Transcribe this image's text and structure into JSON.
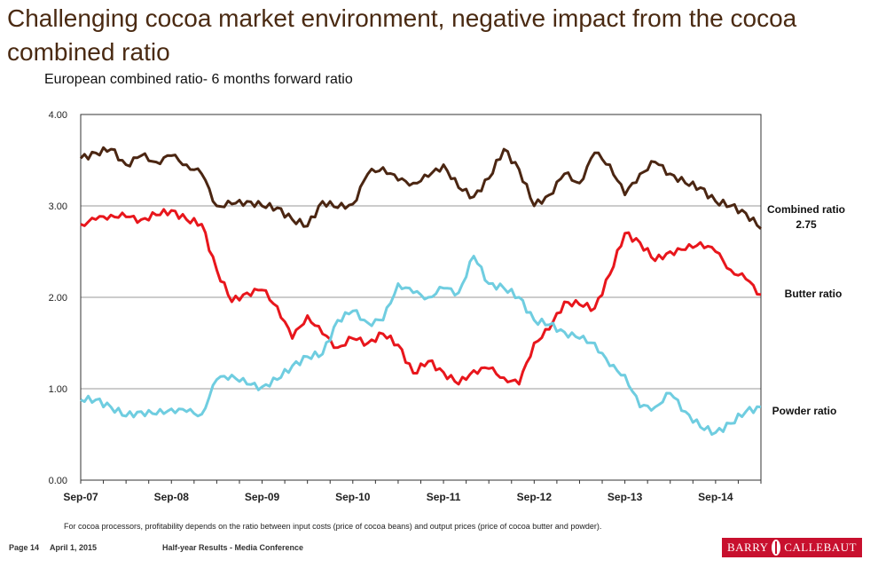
{
  "header": {
    "title": "Challenging cocoa market environment, negative impact from the cocoa combined ratio",
    "subtitle": "European combined ratio- 6 months forward ratio"
  },
  "footnote": "For cocoa processors, profitability depends on the ratio between input costs (price of cocoa beans) and output prices (price of cocoa butter and powder).",
  "footer": {
    "page": "Page 14",
    "date": "April 1, 2015",
    "event": "Half-year Results -  Media Conference",
    "logo_left": "BARRY",
    "logo_right": "CALLEBAUT"
  },
  "chart_data": {
    "type": "line",
    "title": "European combined ratio- 6 months forward ratio",
    "xlabel": "",
    "ylabel": "",
    "ylim": [
      0,
      4
    ],
    "yticks": [
      "0.00",
      "1.00",
      "2.00",
      "3.00",
      "4.00"
    ],
    "xlim": [
      0,
      90
    ],
    "x_tick_positions": [
      0,
      12,
      24,
      36,
      48,
      60,
      72,
      84
    ],
    "x_tick_labels": [
      "Sep-07",
      "Sep-08",
      "Sep-09",
      "Sep-10",
      "Sep-11",
      "Sep-12",
      "Sep-13",
      "Sep-14"
    ],
    "x": [
      0,
      2,
      4,
      6,
      8,
      10,
      12,
      14,
      16,
      18,
      20,
      22,
      24,
      26,
      28,
      30,
      32,
      34,
      36,
      38,
      40,
      42,
      44,
      46,
      48,
      50,
      52,
      54,
      56,
      58,
      60,
      62,
      64,
      66,
      68,
      70,
      72,
      74,
      76,
      78,
      80,
      82,
      84,
      86,
      88,
      90
    ],
    "series": [
      {
        "name": "Combined ratio",
        "label": "Combined ratio",
        "end_label": "2.75",
        "color": "#4b2612",
        "values": [
          3.52,
          3.58,
          3.62,
          3.45,
          3.55,
          3.48,
          3.55,
          3.45,
          3.35,
          3.0,
          3.02,
          3.05,
          3.0,
          2.98,
          2.85,
          2.78,
          3.05,
          2.98,
          3.02,
          3.35,
          3.42,
          3.28,
          3.25,
          3.32,
          3.45,
          3.2,
          3.1,
          3.3,
          3.62,
          3.4,
          3.0,
          3.12,
          3.35,
          3.25,
          3.58,
          3.45,
          3.12,
          3.35,
          3.48,
          3.35,
          3.25,
          3.2,
          3.05,
          3.0,
          2.92,
          2.75
        ]
      },
      {
        "name": "Butter ratio",
        "label": "Butter ratio",
        "color": "#e8161c",
        "values": [
          2.8,
          2.85,
          2.9,
          2.88,
          2.85,
          2.9,
          2.95,
          2.85,
          2.8,
          2.3,
          1.95,
          2.05,
          2.08,
          1.9,
          1.55,
          1.8,
          1.6,
          1.45,
          1.55,
          1.5,
          1.6,
          1.48,
          1.17,
          1.3,
          1.18,
          1.05,
          1.2,
          1.22,
          1.12,
          1.05,
          1.5,
          1.65,
          1.95,
          1.92,
          1.88,
          2.25,
          2.7,
          2.6,
          2.4,
          2.5,
          2.52,
          2.6,
          2.5,
          2.3,
          2.2,
          2.03
        ]
      },
      {
        "name": "Powder ratio",
        "label": "Powder ratio",
        "color": "#6fcde0",
        "values": [
          0.88,
          0.88,
          0.8,
          0.7,
          0.75,
          0.72,
          0.78,
          0.75,
          0.72,
          1.1,
          1.15,
          1.05,
          1.02,
          1.1,
          1.25,
          1.35,
          1.38,
          1.75,
          1.85,
          1.72,
          1.75,
          2.15,
          2.05,
          2.0,
          2.1,
          2.05,
          2.45,
          2.15,
          2.1,
          2.0,
          1.75,
          1.7,
          1.62,
          1.55,
          1.5,
          1.25,
          1.15,
          0.8,
          0.8,
          0.95,
          0.75,
          0.58,
          0.52,
          0.62,
          0.75,
          0.8
        ]
      }
    ]
  }
}
